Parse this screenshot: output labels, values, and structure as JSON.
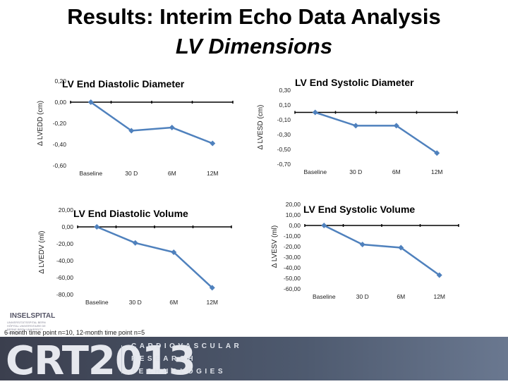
{
  "slide": {
    "title_line1": "Results: Interim Echo Data Analysis",
    "title_line2": "LV Dimensions",
    "footnote": "6 month time point n=10, 12-month time point n=5"
  },
  "logo": {
    "name": "INSELSPITAL",
    "sub": "UNIVERSITÄTSSPITAL BERN HÔPITAL UNIVERSITAIRE DE BERNE BERN UNIVERSITY HOSPITAL"
  },
  "banner": {
    "brand": "CRT2013",
    "lines": [
      "CARDIOVASCULAR",
      "RESEARCH",
      "TECHNOLOGIES"
    ]
  },
  "colors": {
    "series": "#4f81bd",
    "axis": "#000000"
  },
  "chart_data": [
    {
      "type": "line",
      "title": "LV End Diastolic Diameter",
      "ylabel": "Δ LVEDD (cm)",
      "categories": [
        "Baseline",
        "30 D",
        "6M",
        "12M"
      ],
      "y_ticks": [
        "0,20",
        "0,00",
        "-0,20",
        "-0,40",
        "-0,60"
      ],
      "ylim": [
        -0.6,
        0.2
      ],
      "x": [
        "Baseline",
        "30 D",
        "6M",
        "12M"
      ],
      "values": [
        0.0,
        -0.27,
        -0.24,
        -0.39
      ]
    },
    {
      "type": "line",
      "title": "LV End Systolic Diameter",
      "ylabel": "Δ LVESD (cm)",
      "categories": [
        "Baseline",
        "30 D",
        "6M",
        "12M"
      ],
      "y_ticks": [
        "0,30",
        "0,10",
        "-0,10",
        "-0,30",
        "-0,50",
        "-0,70"
      ],
      "ylim": [
        -0.7,
        0.3
      ],
      "x": [
        "Baseline",
        "30 D",
        "6M",
        "12M"
      ],
      "values": [
        0.0,
        -0.18,
        -0.18,
        -0.55
      ]
    },
    {
      "type": "line",
      "title": "LV End Diastolic Volume",
      "ylabel": "Δ LVEDV (ml)",
      "categories": [
        "Baseline",
        "30 D",
        "6M",
        "12M"
      ],
      "y_ticks": [
        "20,00",
        "0,00",
        "-20,00",
        "-40,00",
        "-60,00",
        "-80,00"
      ],
      "ylim": [
        -80,
        20
      ],
      "x": [
        "Baseline",
        "30 D",
        "6M",
        "12M"
      ],
      "values": [
        0.0,
        -19,
        -30,
        -72
      ]
    },
    {
      "type": "line",
      "title": "LV End Systolic Volume",
      "ylabel": "Δ LVESV (ml)",
      "categories": [
        "Baseline",
        "30 D",
        "6M",
        "12M"
      ],
      "y_ticks": [
        "20,00",
        "10,00",
        "0,00",
        "-10,00",
        "-20,00",
        "-30,00",
        "-40,00",
        "-50,00",
        "-60,00"
      ],
      "ylim": [
        -60,
        20
      ],
      "x": [
        "Baseline",
        "30 D",
        "6M",
        "12M"
      ],
      "values": [
        0.0,
        -18,
        -21,
        -47
      ]
    }
  ]
}
